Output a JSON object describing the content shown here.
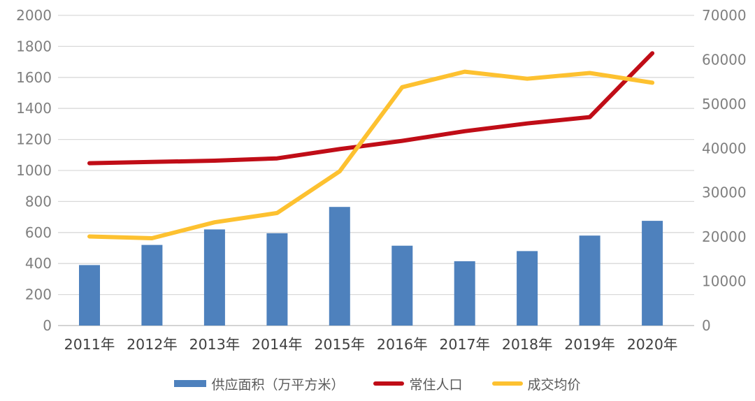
{
  "chart_data": {
    "type": "combo",
    "title": "",
    "categories": [
      "2011年",
      "2012年",
      "2013年",
      "2014年",
      "2015年",
      "2016年",
      "2017年",
      "2018年",
      "2019年",
      "2020年"
    ],
    "series": [
      {
        "id": "supply-area",
        "name": "供应面积（万平方米）",
        "type": "bar",
        "axis": "left",
        "color": "#4E81BD",
        "values": [
          390,
          520,
          620,
          595,
          765,
          515,
          415,
          480,
          580,
          675
        ]
      },
      {
        "id": "resident-population",
        "name": "常住人口",
        "type": "line",
        "axis": "left",
        "color": "#C00D17",
        "values": [
          1047,
          1055,
          1063,
          1078,
          1138,
          1191,
          1253,
          1303,
          1344,
          1756
        ]
      },
      {
        "id": "avg-price",
        "name": "成交均价",
        "type": "line",
        "axis": "right",
        "color": "#FDC130",
        "values": [
          20100,
          19700,
          23300,
          25400,
          34800,
          53800,
          57300,
          55700,
          57000,
          54800
        ]
      }
    ],
    "left_axis": {
      "min": 0,
      "max": 2000,
      "step": 200,
      "tick_values": [
        0,
        200,
        400,
        600,
        800,
        1000,
        1200,
        1400,
        1600,
        1800,
        2000
      ],
      "tick_labels": [
        "0",
        "200",
        "400",
        "600",
        "800",
        "1000",
        "1200",
        "1400",
        "1600",
        "1800",
        "2000"
      ]
    },
    "right_axis": {
      "min": 0,
      "max": 70000,
      "step": 10000,
      "tick_values": [
        0,
        10000,
        20000,
        30000,
        40000,
        50000,
        60000,
        70000
      ],
      "tick_labels": [
        "0",
        "10000",
        "20000",
        "30000",
        "40000",
        "50000",
        "60000",
        "70000"
      ]
    },
    "grid": true,
    "legend_position": "bottom",
    "colors": {
      "gridline": "#D9D9D9",
      "axis_line": "#C6C6C6",
      "tick_label": "#7F7F7F",
      "x_label": "#404040",
      "legend_text": "#595959",
      "background": "#FFFFFF"
    }
  }
}
